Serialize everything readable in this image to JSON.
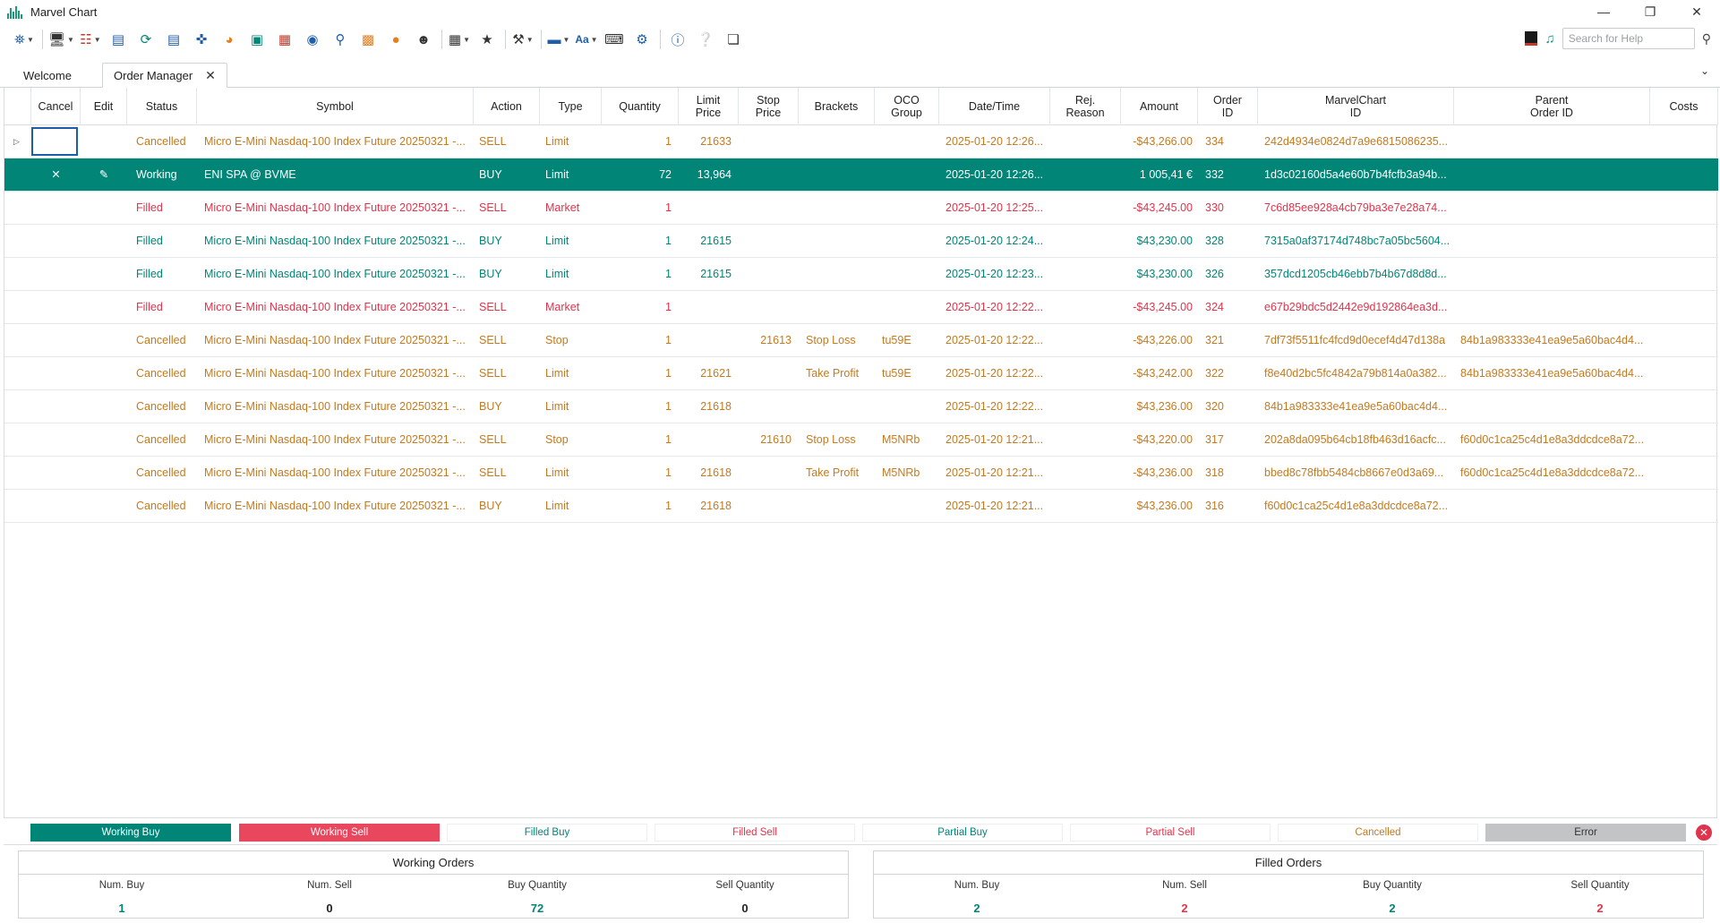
{
  "window": {
    "title": "Marvel Chart",
    "controls": [
      "minimize",
      "restore",
      "close"
    ]
  },
  "toolbar": {
    "search_placeholder": "Search for Help",
    "font_button": "Aa"
  },
  "tabs": [
    {
      "label": "Welcome",
      "active": false
    },
    {
      "label": "Order Manager",
      "active": true
    }
  ],
  "columns": [
    {
      "key": "cancel",
      "label": "Cancel"
    },
    {
      "key": "edit",
      "label": "Edit"
    },
    {
      "key": "status",
      "label": "Status"
    },
    {
      "key": "symbol",
      "label": "Symbol"
    },
    {
      "key": "action",
      "label": "Action"
    },
    {
      "key": "type",
      "label": "Type"
    },
    {
      "key": "quantity",
      "label": "Quantity"
    },
    {
      "key": "limit_price",
      "label": "Limit\nPrice"
    },
    {
      "key": "stop_price",
      "label": "Stop\nPrice"
    },
    {
      "key": "brackets",
      "label": "Brackets"
    },
    {
      "key": "oco_group",
      "label": "OCO\nGroup"
    },
    {
      "key": "datetime",
      "label": "Date/Time"
    },
    {
      "key": "rej_reason",
      "label": "Rej.\nReason"
    },
    {
      "key": "amount",
      "label": "Amount"
    },
    {
      "key": "order_id",
      "label": "Order\nID"
    },
    {
      "key": "marvelchart_id",
      "label": "MarvelChart\nID"
    },
    {
      "key": "parent_order_id",
      "label": "Parent\nOrder ID"
    },
    {
      "key": "costs",
      "label": "Costs"
    }
  ],
  "orders": [
    {
      "status": "Cancelled",
      "symbol": "Micro E-Mini Nasdaq-100 Index Future 20250321 -...",
      "action": "SELL",
      "type": "Limit",
      "quantity": "1",
      "limit_price": "21633",
      "stop_price": "",
      "brackets": "",
      "oco_group": "",
      "datetime": "2025-01-20 12:26...",
      "rej_reason": "",
      "amount": "-$43,266.00",
      "order_id": "334",
      "marvelchart_id": "242d4934e0824d7a9e6815086235...",
      "parent_order_id": "",
      "costs": ""
    },
    {
      "status": "Working",
      "symbol": "ENI SPA @ BVME",
      "action": "BUY",
      "type": "Limit",
      "quantity": "72",
      "limit_price": "13,964",
      "stop_price": "",
      "brackets": "",
      "oco_group": "",
      "datetime": "2025-01-20 12:26...",
      "rej_reason": "",
      "amount": "1 005,41 €",
      "order_id": "332",
      "marvelchart_id": "1d3c02160d5a4e60b7b4fcfb3a94b...",
      "parent_order_id": "",
      "costs": ""
    },
    {
      "status": "Filled",
      "symbol": "Micro E-Mini Nasdaq-100 Index Future 20250321 -...",
      "action": "SELL",
      "type": "Market",
      "quantity": "1",
      "limit_price": "",
      "stop_price": "",
      "brackets": "",
      "oco_group": "",
      "datetime": "2025-01-20 12:25...",
      "rej_reason": "",
      "amount": "-$43,245.00",
      "order_id": "330",
      "marvelchart_id": "7c6d85ee928a4cb79ba3e7e28a74...",
      "parent_order_id": "",
      "costs": ""
    },
    {
      "status": "Filled",
      "symbol": "Micro E-Mini Nasdaq-100 Index Future 20250321 -...",
      "action": "BUY",
      "type": "Limit",
      "quantity": "1",
      "limit_price": "21615",
      "stop_price": "",
      "brackets": "",
      "oco_group": "",
      "datetime": "2025-01-20 12:24...",
      "rej_reason": "",
      "amount": "$43,230.00",
      "order_id": "328",
      "marvelchart_id": "7315a0af37174d748bc7a05bc5604...",
      "parent_order_id": "",
      "costs": ""
    },
    {
      "status": "Filled",
      "symbol": "Micro E-Mini Nasdaq-100 Index Future 20250321 -...",
      "action": "BUY",
      "type": "Limit",
      "quantity": "1",
      "limit_price": "21615",
      "stop_price": "",
      "brackets": "",
      "oco_group": "",
      "datetime": "2025-01-20 12:23...",
      "rej_reason": "",
      "amount": "$43,230.00",
      "order_id": "326",
      "marvelchart_id": "357dcd1205cb46ebb7b4b67d8d8d...",
      "parent_order_id": "",
      "costs": ""
    },
    {
      "status": "Filled",
      "symbol": "Micro E-Mini Nasdaq-100 Index Future 20250321 -...",
      "action": "SELL",
      "type": "Market",
      "quantity": "1",
      "limit_price": "",
      "stop_price": "",
      "brackets": "",
      "oco_group": "",
      "datetime": "2025-01-20 12:22...",
      "rej_reason": "",
      "amount": "-$43,245.00",
      "order_id": "324",
      "marvelchart_id": "e67b29bdc5d2442e9d192864ea3d...",
      "parent_order_id": "",
      "costs": ""
    },
    {
      "status": "Cancelled",
      "symbol": "Micro E-Mini Nasdaq-100 Index Future 20250321 -...",
      "action": "SELL",
      "type": "Stop",
      "quantity": "1",
      "limit_price": "",
      "stop_price": "21613",
      "brackets": "Stop Loss",
      "oco_group": "tu59E",
      "datetime": "2025-01-20 12:22...",
      "rej_reason": "",
      "amount": "-$43,226.00",
      "order_id": "321",
      "marvelchart_id": "7df73f5511fc4fcd9d0ecef4d47d138a",
      "parent_order_id": "84b1a983333e41ea9e5a60bac4d4...",
      "costs": ""
    },
    {
      "status": "Cancelled",
      "symbol": "Micro E-Mini Nasdaq-100 Index Future 20250321 -...",
      "action": "SELL",
      "type": "Limit",
      "quantity": "1",
      "limit_price": "21621",
      "stop_price": "",
      "brackets": "Take Profit",
      "oco_group": "tu59E",
      "datetime": "2025-01-20 12:22...",
      "rej_reason": "",
      "amount": "-$43,242.00",
      "order_id": "322",
      "marvelchart_id": "f8e40d2bc5fc4842a79b814a0a382...",
      "parent_order_id": "84b1a983333e41ea9e5a60bac4d4...",
      "costs": ""
    },
    {
      "status": "Cancelled",
      "symbol": "Micro E-Mini Nasdaq-100 Index Future 20250321 -...",
      "action": "BUY",
      "type": "Limit",
      "quantity": "1",
      "limit_price": "21618",
      "stop_price": "",
      "brackets": "",
      "oco_group": "",
      "datetime": "2025-01-20 12:22...",
      "rej_reason": "",
      "amount": "$43,236.00",
      "order_id": "320",
      "marvelchart_id": "84b1a983333e41ea9e5a60bac4d4...",
      "parent_order_id": "",
      "costs": ""
    },
    {
      "status": "Cancelled",
      "symbol": "Micro E-Mini Nasdaq-100 Index Future 20250321 -...",
      "action": "SELL",
      "type": "Stop",
      "quantity": "1",
      "limit_price": "",
      "stop_price": "21610",
      "brackets": "Stop Loss",
      "oco_group": "M5NRb",
      "datetime": "2025-01-20 12:21...",
      "rej_reason": "",
      "amount": "-$43,220.00",
      "order_id": "317",
      "marvelchart_id": "202a8da095b64cb18fb463d16acfc...",
      "parent_order_id": "f60d0c1ca25c4d1e8a3ddcdce8a72...",
      "costs": ""
    },
    {
      "status": "Cancelled",
      "symbol": "Micro E-Mini Nasdaq-100 Index Future 20250321 -...",
      "action": "SELL",
      "type": "Limit",
      "quantity": "1",
      "limit_price": "21618",
      "stop_price": "",
      "brackets": "Take Profit",
      "oco_group": "M5NRb",
      "datetime": "2025-01-20 12:21...",
      "rej_reason": "",
      "amount": "-$43,236.00",
      "order_id": "318",
      "marvelchart_id": "bbed8c78fbb5484cb8667e0d3a69...",
      "parent_order_id": "f60d0c1ca25c4d1e8a3ddcdce8a72...",
      "costs": ""
    },
    {
      "status": "Cancelled",
      "symbol": "Micro E-Mini Nasdaq-100 Index Future 20250321 -...",
      "action": "BUY",
      "type": "Limit",
      "quantity": "1",
      "limit_price": "21618",
      "stop_price": "",
      "brackets": "",
      "oco_group": "",
      "datetime": "2025-01-20 12:21...",
      "rej_reason": "",
      "amount": "$43,236.00",
      "order_id": "316",
      "marvelchart_id": "f60d0c1ca25c4d1e8a3ddcdce8a72...",
      "parent_order_id": "",
      "costs": ""
    }
  ],
  "selected_row": 1,
  "legend": [
    {
      "label": "Working Buy",
      "bg": "#008577",
      "fg": "#ffffff"
    },
    {
      "label": "Working Sell",
      "bg": "#e8475e",
      "fg": "#ffffff"
    },
    {
      "label": "Filled Buy",
      "bg": "#ffffff",
      "fg": "#008577"
    },
    {
      "label": "Filled Sell",
      "bg": "#ffffff",
      "fg": "#e0344c"
    },
    {
      "label": "Partial Buy",
      "bg": "#ffffff",
      "fg": "#008577"
    },
    {
      "label": "Partial Sell",
      "bg": "#ffffff",
      "fg": "#e0344c"
    },
    {
      "label": "Cancelled",
      "bg": "#ffffff",
      "fg": "#c47a1f"
    },
    {
      "label": "Error",
      "bg": "#c2c4c6",
      "fg": "#333333"
    }
  ],
  "summary": {
    "working": {
      "title": "Working Orders",
      "stats": [
        {
          "label": "Num. Buy",
          "value": "1",
          "color": "teal"
        },
        {
          "label": "Num. Sell",
          "value": "0",
          "color": "dark"
        },
        {
          "label": "Buy Quantity",
          "value": "72",
          "color": "teal"
        },
        {
          "label": "Sell Quantity",
          "value": "0",
          "color": "dark"
        }
      ]
    },
    "filled": {
      "title": "Filled Orders",
      "stats": [
        {
          "label": "Num. Buy",
          "value": "2",
          "color": "teal"
        },
        {
          "label": "Num. Sell",
          "value": "2",
          "color": "red"
        },
        {
          "label": "Buy Quantity",
          "value": "2",
          "color": "teal"
        },
        {
          "label": "Sell Quantity",
          "value": "2",
          "color": "red"
        }
      ]
    }
  },
  "colors": {
    "accent": "#008577",
    "sell": "#e0344c",
    "cancelled": "#c47a1f"
  }
}
